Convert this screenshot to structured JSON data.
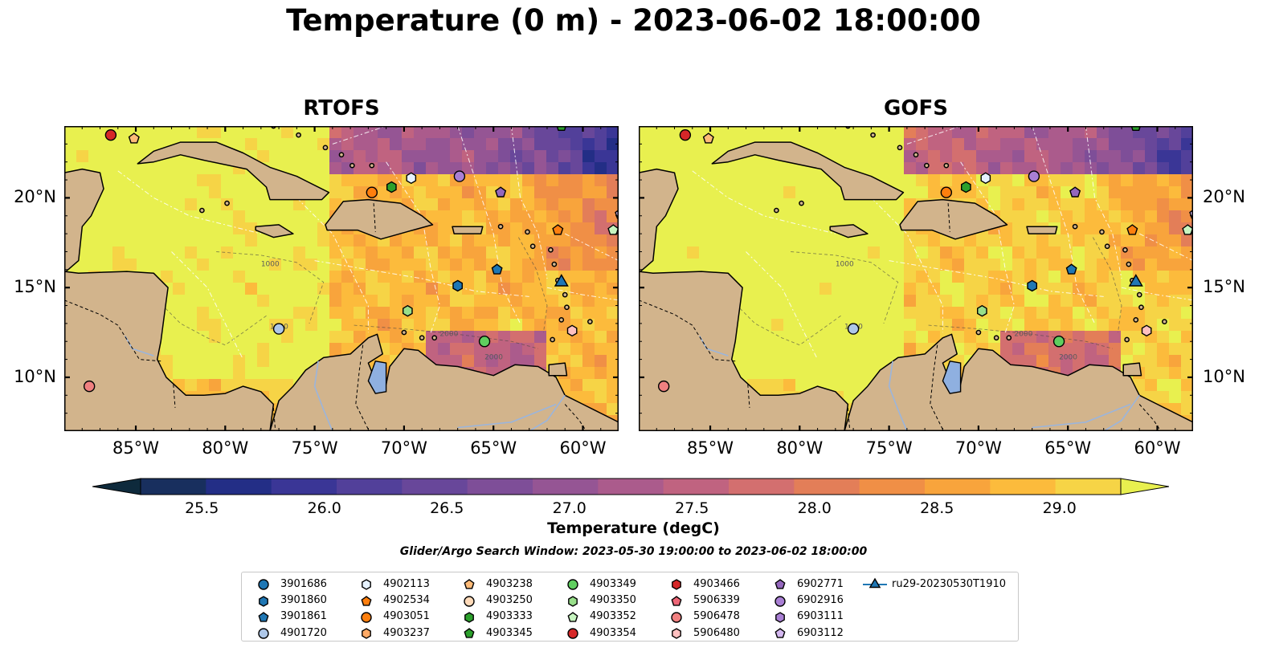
{
  "title": "Temperature (0 m) - 2023-06-02 18:00:00",
  "panels": [
    {
      "title": "RTOFS"
    },
    {
      "title": "GOFS"
    }
  ],
  "extent": {
    "lon": [
      -89,
      -58
    ],
    "lat": [
      7,
      24
    ]
  },
  "x_ticks": [
    {
      "lon": -85,
      "label": "85°W"
    },
    {
      "lon": -80,
      "label": "80°W"
    },
    {
      "lon": -75,
      "label": "75°W"
    },
    {
      "lon": -70,
      "label": "70°W"
    },
    {
      "lon": -65,
      "label": "65°W"
    },
    {
      "lon": -60,
      "label": "60°W"
    }
  ],
  "y_ticks": [
    {
      "lat": 20,
      "label": "20°N"
    },
    {
      "lat": 15,
      "label": "15°N"
    },
    {
      "lat": 10,
      "label": "10°N"
    }
  ],
  "bathymetry_contour_labels": [
    "1000",
    "2000"
  ],
  "colorbar": {
    "label": "Temperature (degC)",
    "min": 25.25,
    "max": 29.25,
    "step": 0.25,
    "extend": "both",
    "tick_values": [
      25.5,
      26.0,
      26.5,
      27.0,
      27.5,
      28.0,
      28.5,
      29.0
    ],
    "tick_labels": [
      "25.5",
      "26.0",
      "26.5",
      "27.0",
      "27.5",
      "28.0",
      "28.5",
      "29.0"
    ],
    "colors": [
      "#0e2a3c",
      "#182f5e",
      "#232e86",
      "#3a3696",
      "#52409a",
      "#68479a",
      "#7e4e98",
      "#955594",
      "#ab5b8c",
      "#c06380",
      "#d36f6f",
      "#e37e58",
      "#f08f46",
      "#f8a43c",
      "#fcbb3c",
      "#f6d446",
      "#e8f04f"
    ]
  },
  "search_window": "Glider/Argo Search Window: 2023-05-30 19:00:00 to 2023-06-02 18:00:00",
  "colors": {
    "land": "#d2b48c",
    "rivers": "#9bb5dc",
    "lake": "#8fb0e0"
  },
  "platforms": [
    {
      "id": "3901686",
      "marker": "circle",
      "color": "#1f77b4",
      "lon": null,
      "lat": null
    },
    {
      "id": "3901860",
      "marker": "hexagon",
      "color": "#1f77b4",
      "lon": -67.0,
      "lat": 15.1
    },
    {
      "id": "3901861",
      "marker": "pentagon",
      "color": "#1f77b4",
      "lon": -64.8,
      "lat": 16.0
    },
    {
      "id": "4901720",
      "marker": "circle",
      "color": "#aec7e8",
      "lon": -77.0,
      "lat": 12.7
    },
    {
      "id": "4902113",
      "marker": "hexagon",
      "color": "#e6f2ff",
      "lon": -69.6,
      "lat": 21.1
    },
    {
      "id": "4902534",
      "marker": "pentagon",
      "color": "#ff7f0e",
      "lon": -61.4,
      "lat": 18.2
    },
    {
      "id": "4903051",
      "marker": "circle",
      "color": "#ff7f0e",
      "lon": -71.8,
      "lat": 20.3
    },
    {
      "id": "4903237",
      "marker": "hexagon",
      "color": "#ffaa66",
      "lon": null,
      "lat": null
    },
    {
      "id": "4903238",
      "marker": "pentagon",
      "color": "#ffbb78",
      "lon": -85.1,
      "lat": 23.3
    },
    {
      "id": "4903250",
      "marker": "circle",
      "color": "#ffdab9",
      "lon": null,
      "lat": null
    },
    {
      "id": "4903333",
      "marker": "hexagon",
      "color": "#2ca02c",
      "lon": -70.7,
      "lat": 20.6
    },
    {
      "id": "4903345",
      "marker": "pentagon",
      "color": "#2ca02c",
      "lon": -61.2,
      "lat": 24.0
    },
    {
      "id": "4903349",
      "marker": "circle",
      "color": "#5fce5f",
      "lon": -65.5,
      "lat": 12.0
    },
    {
      "id": "4903350",
      "marker": "hexagon",
      "color": "#98df8a",
      "lon": -69.8,
      "lat": 13.7
    },
    {
      "id": "4903352",
      "marker": "pentagon",
      "color": "#c7f5c0",
      "lon": -58.3,
      "lat": 18.2
    },
    {
      "id": "4903354",
      "marker": "circle",
      "color": "#d62728",
      "lon": -86.4,
      "lat": 23.5
    },
    {
      "id": "4903466",
      "marker": "hexagon",
      "color": "#d62728",
      "lon": null,
      "lat": null
    },
    {
      "id": "5906339",
      "marker": "pentagon",
      "color": "#ee6677",
      "lon": null,
      "lat": null
    },
    {
      "id": "5906478",
      "marker": "circle",
      "color": "#f08080",
      "lon": -87.6,
      "lat": 9.5
    },
    {
      "id": "5906480",
      "marker": "hexagon",
      "color": "#ffc0c0",
      "lon": -60.6,
      "lat": 12.6
    },
    {
      "id": "6902771",
      "marker": "pentagon",
      "color": "#9467bd",
      "lon": -64.6,
      "lat": 20.3
    },
    {
      "id": "6902916",
      "marker": "circle",
      "color": "#a97fd4",
      "lon": -66.9,
      "lat": 21.2
    },
    {
      "id": "6903111",
      "marker": "hexagon",
      "color": "#a97fd4",
      "lon": null,
      "lat": null
    },
    {
      "id": "6903112",
      "marker": "pentagon",
      "color": "#d4b8f0",
      "lon": -57.9,
      "lat": 19.1
    },
    {
      "id": "ru29-20230530T1910",
      "marker": "triangle",
      "color": "#1f77b4",
      "lon": -61.2,
      "lat": 15.3
    }
  ]
}
